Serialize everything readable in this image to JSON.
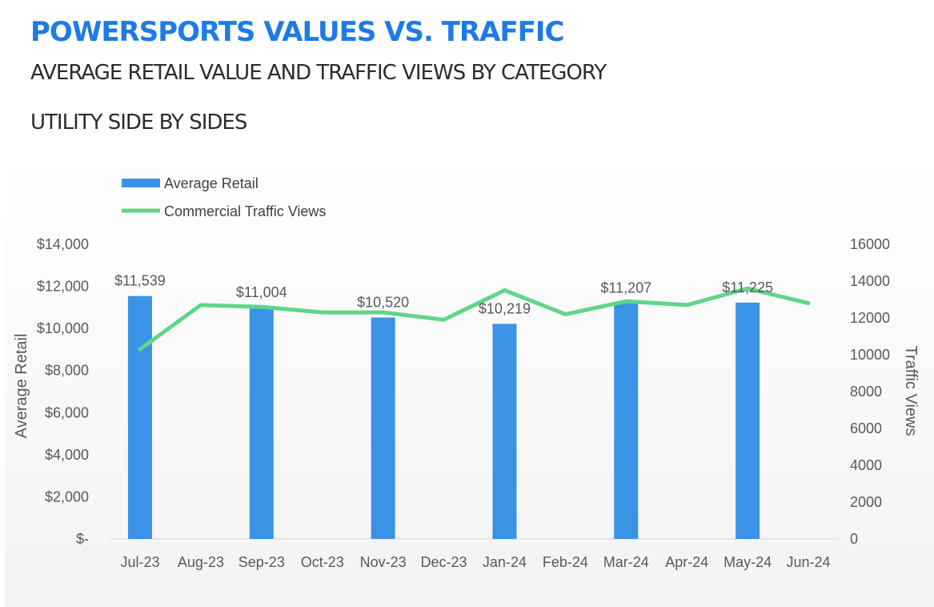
{
  "header": {
    "title": "POWERSPORTS VALUES VS. TRAFFIC",
    "subtitle": "AVERAGE RETAIL VALUE AND TRAFFIC VIEWS BY CATEGORY",
    "category": "UTILITY SIDE BY SIDES"
  },
  "colors": {
    "title": "#1e7be6",
    "bar": "#3b93e6",
    "line": "#5fd68a"
  },
  "chart_data": {
    "type": "bar",
    "categories": [
      "Jul-23",
      "Aug-23",
      "Sep-23",
      "Oct-23",
      "Nov-23",
      "Dec-23",
      "Jan-24",
      "Feb-24",
      "Mar-24",
      "Apr-24",
      "May-24",
      "Jun-24"
    ],
    "series": [
      {
        "name": "Average Retail",
        "type": "bar",
        "axis": "left",
        "values": [
          11539,
          null,
          11004,
          null,
          10520,
          null,
          10219,
          null,
          11207,
          null,
          11225,
          null
        ],
        "labels": [
          "$11,539",
          "",
          "$11,004",
          "",
          "$10,520",
          "",
          "$10,219",
          "",
          "$11,207",
          "",
          "$11,225",
          ""
        ]
      },
      {
        "name": "Commercial Traffic Views",
        "type": "line",
        "axis": "right",
        "values": [
          10300,
          12700,
          12600,
          12300,
          12300,
          11900,
          13500,
          12200,
          12900,
          12700,
          13600,
          12800
        ]
      }
    ],
    "ylabel": "Average Retail",
    "y2label": "Traffic Views",
    "ylim": [
      0,
      14000
    ],
    "yticks": [
      0,
      2000,
      4000,
      6000,
      8000,
      10000,
      12000,
      14000
    ],
    "ytick_labels": [
      "$-",
      "$2,000",
      "$4,000",
      "$6,000",
      "$8,000",
      "$10,000",
      "$12,000",
      "$14,000"
    ],
    "y2lim": [
      0,
      16000
    ],
    "y2ticks": [
      0,
      2000,
      4000,
      6000,
      8000,
      10000,
      12000,
      14000,
      16000
    ],
    "y2tick_labels": [
      "0",
      "2000",
      "4000",
      "6000",
      "8000",
      "10000",
      "12000",
      "14000",
      "16000"
    ],
    "legend_position": "top-left",
    "grid": false
  }
}
